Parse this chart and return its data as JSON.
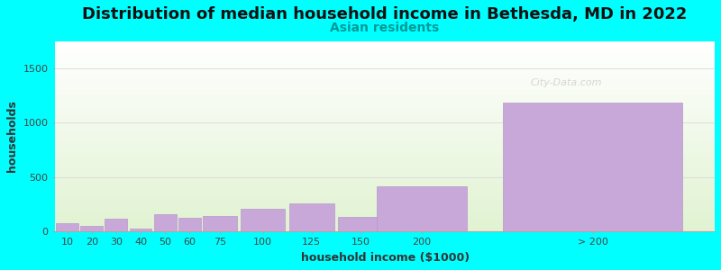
{
  "title": "Distribution of median household income in Bethesda, MD in 2022",
  "subtitle": "Asian residents",
  "xlabel": "household income ($1000)",
  "ylabel": "households",
  "categories": [
    "10",
    "20",
    "30",
    "40",
    "50",
    "60",
    "75",
    "100",
    "125",
    "150",
    "200",
    "> 200"
  ],
  "values": [
    75,
    45,
    115,
    25,
    155,
    120,
    140,
    210,
    255,
    135,
    415,
    1185
  ],
  "bar_color": "#c8a8d8",
  "bar_edge_color": "#b898c8",
  "background_color": "#00ffff",
  "plot_bg_top_color": "#f0f8f0",
  "plot_bg_bottom_color": "#d8eec8",
  "grid_color": "#dddddd",
  "ylim": [
    0,
    1750
  ],
  "yticks": [
    0,
    500,
    1000,
    1500
  ],
  "title_fontsize": 13,
  "subtitle_fontsize": 10,
  "subtitle_color": "#009999",
  "tick_label_fontsize": 8,
  "axis_label_fontsize": 9,
  "watermark": "City-Data.com",
  "bar_positions": [
    0.5,
    1.5,
    2.5,
    3.5,
    4.5,
    5.5,
    6.75,
    8.5,
    10.5,
    12.5,
    15.0,
    22.0
  ],
  "bar_widths": [
    1.0,
    1.0,
    1.0,
    1.0,
    1.0,
    1.0,
    1.5,
    2.0,
    2.0,
    2.0,
    4.0,
    8.0
  ]
}
